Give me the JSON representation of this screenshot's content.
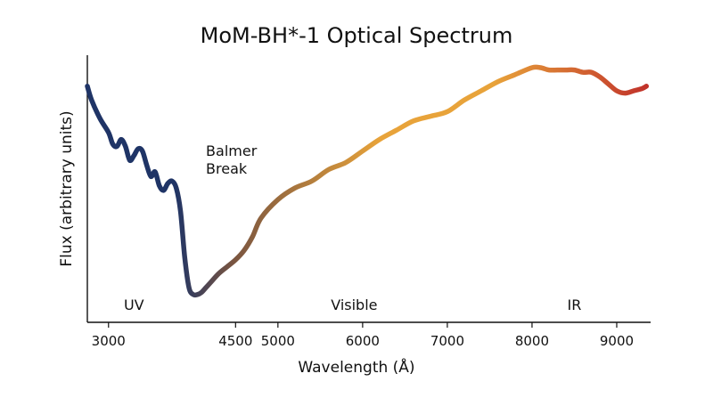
{
  "chart_data": {
    "type": "line",
    "title": "MoM-BH*-1 Optical Spectrum",
    "xlabel": "Wavelength (Å)",
    "ylabel": "Flux (arbitrary units)",
    "xlim": [
      2750,
      9400
    ],
    "ylim": [
      0,
      1
    ],
    "x_ticks": [
      3000,
      4500,
      5000,
      6000,
      7000,
      8000,
      9000
    ],
    "x_tick_labels": [
      "3000",
      "4500",
      "5000",
      "6000",
      "7000",
      "8000",
      "9000"
    ],
    "grid": false,
    "series": [
      {
        "x": [
          2750,
          2800,
          2900,
          3000,
          3050,
          3100,
          3150,
          3200,
          3250,
          3300,
          3350,
          3400,
          3450,
          3500,
          3550,
          3600,
          3650,
          3700,
          3750,
          3800,
          3850,
          3900,
          3950,
          4000,
          4050,
          4100,
          4150,
          4200,
          4300,
          4400,
          4500,
          4600,
          4700,
          4800,
          5000,
          5200,
          5400,
          5600,
          5800,
          6000,
          6200,
          6400,
          6600,
          6800,
          7000,
          7200,
          7400,
          7600,
          7800,
          8000,
          8100,
          8200,
          8300,
          8400,
          8500,
          8600,
          8700,
          8800,
          8900,
          9000,
          9100,
          9200,
          9300,
          9350
        ],
        "y": [
          0.92,
          0.86,
          0.78,
          0.72,
          0.67,
          0.66,
          0.69,
          0.66,
          0.6,
          0.62,
          0.65,
          0.64,
          0.58,
          0.53,
          0.55,
          0.49,
          0.47,
          0.5,
          0.51,
          0.48,
          0.38,
          0.18,
          0.05,
          0.02,
          0.02,
          0.03,
          0.05,
          0.07,
          0.11,
          0.14,
          0.17,
          0.21,
          0.27,
          0.35,
          0.43,
          0.48,
          0.51,
          0.56,
          0.59,
          0.64,
          0.69,
          0.73,
          0.77,
          0.79,
          0.81,
          0.86,
          0.9,
          0.94,
          0.97,
          1.0,
          1.0,
          0.99,
          0.99,
          0.99,
          0.99,
          0.98,
          0.98,
          0.96,
          0.93,
          0.9,
          0.89,
          0.9,
          0.91,
          0.92
        ]
      }
    ],
    "annotations": [
      {
        "text_lines": [
          "Balmer",
          "Break"
        ],
        "x": 4150,
        "y": 0.62
      }
    ],
    "regions": [
      {
        "label": "UV",
        "x": 3300
      },
      {
        "label": "Visible",
        "x": 5900
      },
      {
        "label": "IR",
        "x": 8500
      }
    ],
    "colors": {
      "uv": "#1f3466",
      "mid": "#7a5540",
      "visible": "#e8a33a",
      "ir": "#c0302a",
      "axis": "#111111"
    }
  }
}
